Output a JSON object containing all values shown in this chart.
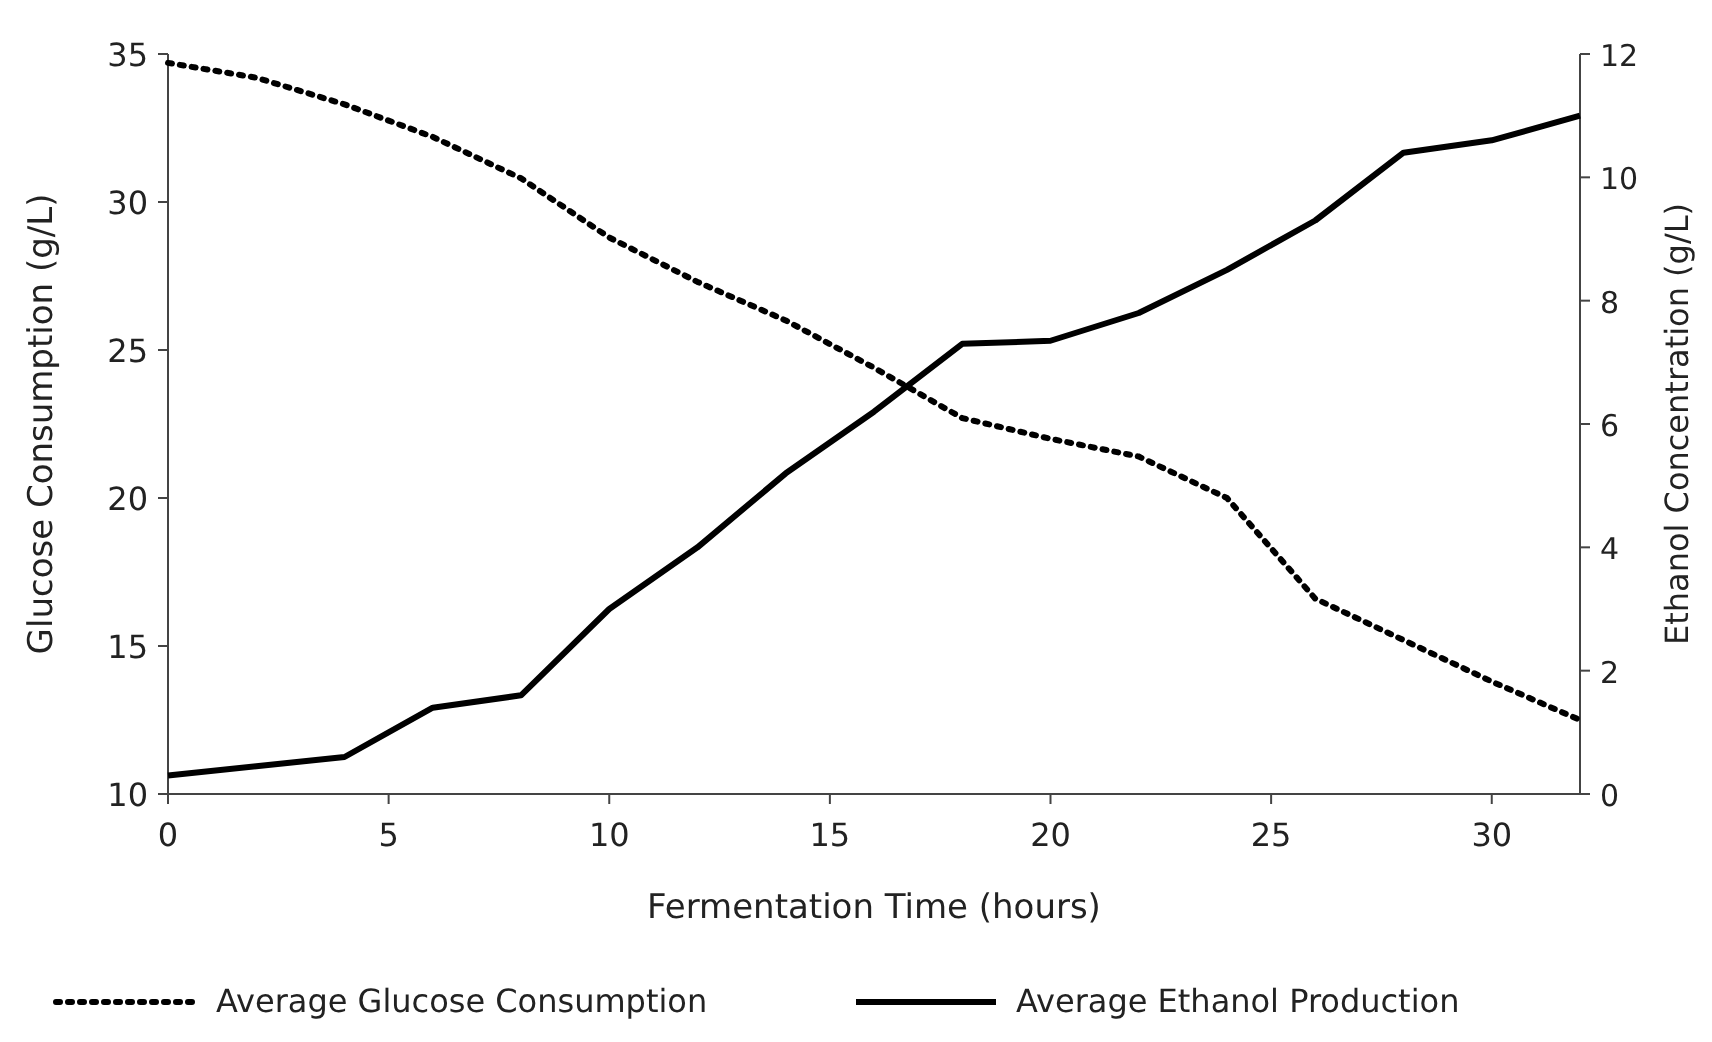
{
  "chart_data": {
    "type": "line",
    "xlabel": "Fermentation Time (hours)",
    "ylabel": "Glucose Consumption (g/L)",
    "y2label": "Ethanol Concentration (g/L)",
    "x": [
      0,
      2,
      4,
      6,
      8,
      10,
      12,
      14,
      16,
      18,
      20,
      22,
      24,
      26,
      28,
      30,
      32
    ],
    "xlim": [
      0,
      32
    ],
    "xticks": [
      0,
      5,
      10,
      15,
      20,
      25,
      30
    ],
    "ylim": [
      10,
      35
    ],
    "yticks": [
      10,
      15,
      20,
      25,
      30,
      35
    ],
    "y2lim": [
      0,
      12
    ],
    "y2ticks": [
      0,
      2,
      4,
      6,
      8,
      10,
      12
    ],
    "series": [
      {
        "name": "Average Glucose Consumption",
        "color": "#000000",
        "line_style": "dotted",
        "values": [
          34.7,
          34.2,
          33.3,
          32.2,
          30.8,
          28.8,
          27.3,
          26.0,
          24.4,
          22.7,
          22.0,
          21.4,
          20.0,
          16.6,
          15.2,
          13.8,
          12.5
        ]
      },
      {
        "name": "Average Ethanol Production",
        "color": "#000000",
        "line_style": "solid",
        "axis": "y2",
        "values": [
          0.3,
          0.45,
          0.6,
          1.4,
          1.6,
          3.0,
          4.0,
          5.2,
          6.2,
          7.3,
          7.35,
          7.8,
          8.5,
          9.3,
          10.4,
          10.6,
          11.0
        ]
      }
    ],
    "legend": "bottom",
    "grid": false
  }
}
